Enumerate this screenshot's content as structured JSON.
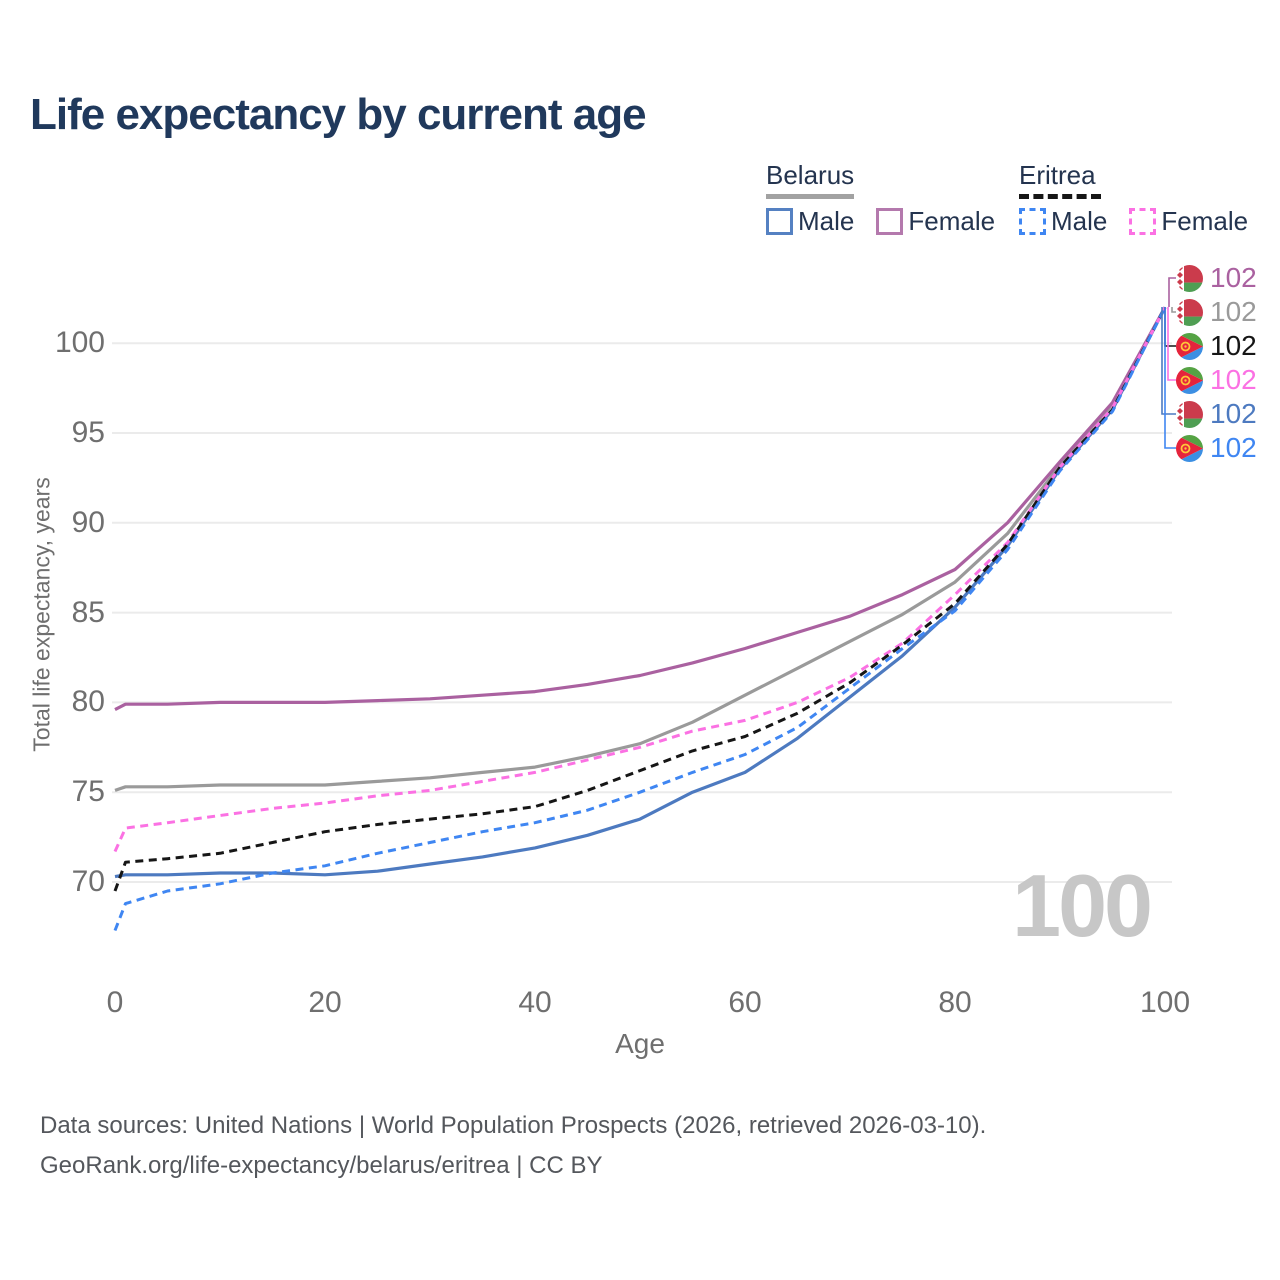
{
  "title": "Life expectancy by current age",
  "legend": {
    "groups": [
      {
        "country": "Belarus",
        "style": "solid",
        "items": [
          {
            "label": "Male"
          },
          {
            "label": "Female"
          }
        ]
      },
      {
        "country": "Eritrea",
        "style": "dashed",
        "items": [
          {
            "label": "Male"
          },
          {
            "label": "Female"
          }
        ]
      }
    ]
  },
  "colors": {
    "title_text": "#20395c",
    "legend_text": "#24344f",
    "tick_text": "#6f6f6f",
    "gridline": "#ebebeb",
    "watermark": "#c7c7c7",
    "footer_text": "#54575c",
    "belarus_underline": "#a2a2a2",
    "eritrea_underline": "#161616"
  },
  "chart_data": {
    "type": "line",
    "title": "Life expectancy by current age",
    "xlabel": "Age",
    "ylabel": "Total life expectancy, years",
    "x_ticks": [
      0,
      20,
      40,
      60,
      80,
      100
    ],
    "y_ticks": [
      70,
      75,
      80,
      85,
      90,
      95,
      100
    ],
    "xlim": [
      0,
      100
    ],
    "ylim": [
      67,
      102
    ],
    "grid": "horizontal-only",
    "legend_position": "top-right",
    "watermark": "100",
    "ages": [
      0,
      1,
      5,
      10,
      15,
      20,
      25,
      30,
      35,
      40,
      45,
      50,
      55,
      60,
      65,
      70,
      75,
      80,
      85,
      90,
      95,
      100
    ],
    "series": [
      {
        "name": "Belarus female",
        "country": "Belarus",
        "sex": "Female",
        "line": "solid",
        "color": "#aa61a0",
        "end_label": "102",
        "values": [
          79.6,
          79.9,
          79.9,
          80.0,
          80.0,
          80.0,
          80.1,
          80.2,
          80.4,
          80.6,
          81.0,
          81.5,
          82.2,
          83.0,
          83.9,
          84.8,
          86.0,
          87.4,
          90.0,
          93.4,
          96.7,
          102
        ]
      },
      {
        "name": "Belarus overall",
        "country": "Belarus",
        "sex": "Both",
        "line": "solid",
        "color": "#9a9a9a",
        "end_label": "102",
        "values": [
          75.1,
          75.3,
          75.3,
          75.4,
          75.4,
          75.4,
          75.6,
          75.8,
          76.1,
          76.4,
          77.0,
          77.7,
          78.9,
          80.4,
          81.9,
          83.4,
          84.9,
          86.7,
          89.4,
          93.2,
          96.6,
          102
        ]
      },
      {
        "name": "Eritrea overall",
        "country": "Eritrea",
        "sex": "Both",
        "line": "dashed",
        "color": "#161616",
        "end_label": "102",
        "values": [
          69.5,
          71.1,
          71.3,
          71.6,
          72.2,
          72.8,
          73.2,
          73.5,
          73.8,
          74.2,
          75.1,
          76.2,
          77.3,
          78.1,
          79.4,
          81.1,
          83.2,
          85.5,
          88.8,
          93.1,
          96.3,
          102
        ]
      },
      {
        "name": "Eritrea female",
        "country": "Eritrea",
        "sex": "Female",
        "line": "dashed",
        "color": "#fb71e3",
        "end_label": "102",
        "values": [
          71.7,
          73.0,
          73.3,
          73.7,
          74.1,
          74.4,
          74.8,
          75.1,
          75.6,
          76.1,
          76.8,
          77.5,
          78.4,
          79.0,
          80.0,
          81.4,
          83.3,
          86.0,
          88.9,
          93.1,
          96.4,
          102
        ]
      },
      {
        "name": "Belarus male",
        "country": "Belarus",
        "sex": "Male",
        "line": "solid",
        "color": "#4d7ac0",
        "end_label": "102",
        "values": [
          70.3,
          70.4,
          70.4,
          70.5,
          70.5,
          70.4,
          70.6,
          71.0,
          71.4,
          71.9,
          72.6,
          73.5,
          75.0,
          76.1,
          78.0,
          80.3,
          82.6,
          85.3,
          88.7,
          93.0,
          96.3,
          102
        ]
      },
      {
        "name": "Eritrea male",
        "country": "Eritrea",
        "sex": "Male",
        "line": "dashed",
        "color": "#3f86f2",
        "end_label": "102",
        "values": [
          67.3,
          68.8,
          69.5,
          69.9,
          70.5,
          70.9,
          71.6,
          72.2,
          72.8,
          73.3,
          74.0,
          75.0,
          76.1,
          77.1,
          78.6,
          80.8,
          83.0,
          85.1,
          88.5,
          92.9,
          96.2,
          102
        ]
      }
    ]
  },
  "footer": {
    "line1": "Data sources: United Nations | World Population Prospects (2026, retrieved 2026-03-10).",
    "line2": "GeoRank.org/life-expectancy/belarus/eritrea | CC BY"
  }
}
